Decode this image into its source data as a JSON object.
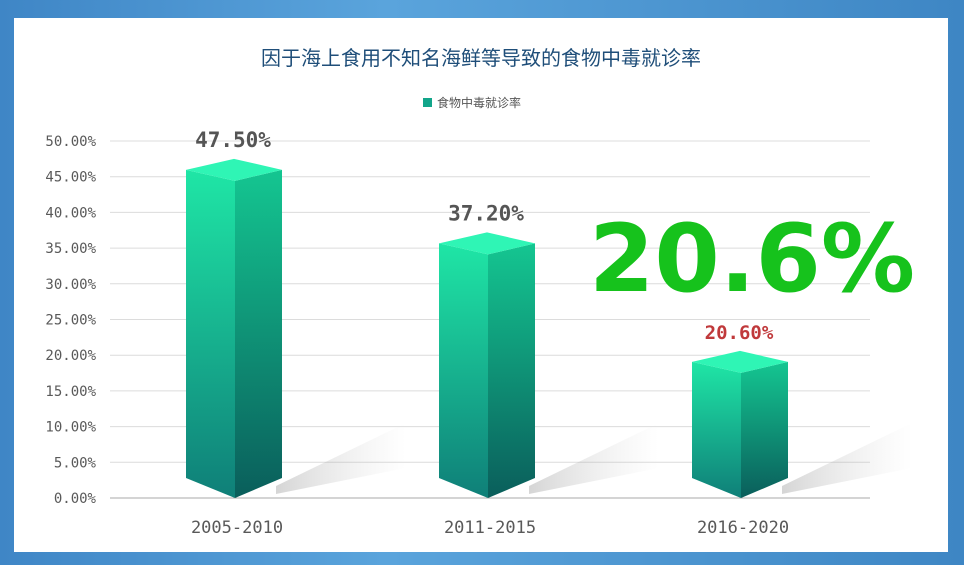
{
  "chart_data": {
    "type": "bar",
    "title": "因于海上食用不知名海鲜等导致的食物中毒就诊率",
    "legend": "食物中毒就诊率",
    "legend_position": "top",
    "categories": [
      "2005-2010",
      "2011-2015",
      "2016-2020"
    ],
    "series": [
      {
        "name": "食物中毒就诊率",
        "values": [
          47.5,
          37.2,
          20.6
        ]
      }
    ],
    "data_labels": [
      "47.50%",
      "37.20%",
      "20.60%"
    ],
    "y_ticks": [
      "0.00%",
      "5.00%",
      "10.00%",
      "15.00%",
      "20.00%",
      "25.00%",
      "30.00%",
      "35.00%",
      "40.00%",
      "45.00%",
      "50.00%"
    ],
    "ylim": [
      0,
      50
    ],
    "grid": true,
    "highlight": "20.6%",
    "colors": {
      "bar_front_top": "#1fe6a6",
      "bar_front_bottom": "#0f7f78",
      "bar_side_top": "#14c691",
      "bar_side_bottom": "#0a5e5b",
      "bar_top": "#2ff5b5",
      "highlight": "#16c21c",
      "last_label": "#c0393b",
      "title": "#1f4e79"
    }
  }
}
